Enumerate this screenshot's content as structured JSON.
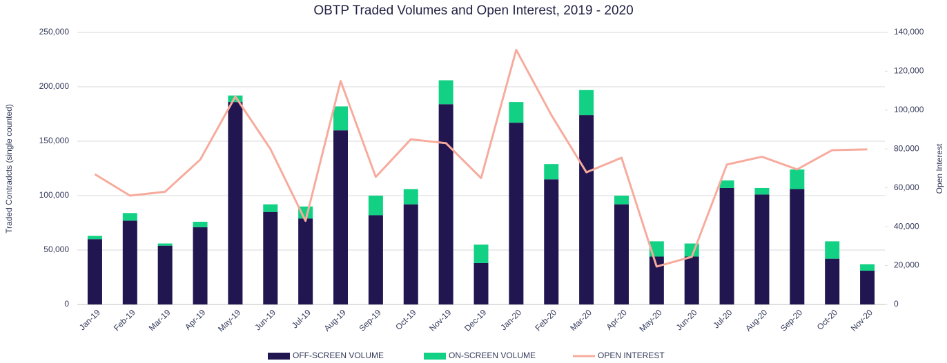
{
  "chart_data": {
    "type": "bar",
    "stacked": true,
    "title": "OBTP Traded Volumes and Open Interest, 2019 - 2020",
    "y_label": "Traded  Contradcts (single counted)",
    "y2_label": "Open Interest",
    "categories": [
      "Jan-19",
      "Feb-19",
      "Mar-19",
      "Apr-19",
      "May-19",
      "Jun-19",
      "Jul-19",
      "Aug-19",
      "Sep-19",
      "Oct-19",
      "Nov-19",
      "Dec-19",
      "Jan-20",
      "Feb-20",
      "Mar-20",
      "Apr-20",
      "May-20",
      "Jun-20",
      "Jul-20",
      "Aug-20",
      "Sep-20",
      "Oct-20",
      "Nov-20"
    ],
    "series": [
      {
        "name": "OFF-SCREEN VOLUME",
        "color": "#211650",
        "type": "bar",
        "values": [
          60000,
          77000,
          54000,
          71000,
          186000,
          85000,
          79000,
          160000,
          82000,
          92000,
          184000,
          38000,
          167000,
          115000,
          174000,
          92000,
          44000,
          44000,
          107000,
          101000,
          106000,
          42000,
          31000
        ]
      },
      {
        "name": "ON-SCREEN VOLUME",
        "color": "#12d184",
        "type": "bar",
        "values": [
          3000,
          7000,
          2000,
          5000,
          6000,
          7000,
          11000,
          22000,
          18000,
          14000,
          22000,
          17000,
          19000,
          14000,
          23000,
          8000,
          14000,
          12000,
          7000,
          6000,
          18000,
          16000,
          6000
        ]
      },
      {
        "name": "OPEN INTEREST",
        "color": "#f7ab9d",
        "type": "line",
        "axis": "y2",
        "values": [
          67000,
          56000,
          58000,
          74500,
          107000,
          80000,
          43000,
          115000,
          65600,
          85000,
          83000,
          65000,
          131000,
          97500,
          68000,
          75500,
          19500,
          24500,
          72000,
          76000,
          69500,
          79400,
          79800
        ]
      }
    ],
    "ylim": [
      0,
      250000
    ],
    "yticks": [
      0,
      {
        "value": 50000,
        "label": "50,000"
      },
      {
        "value": 100000,
        "label": "100,000"
      },
      {
        "value": 150000,
        "label": "150,000"
      },
      {
        "value": 200000,
        "label": "200,000"
      },
      {
        "value": 250000,
        "label": "250,000"
      }
    ],
    "y2lim": [
      0,
      140000
    ],
    "y2ticks": [
      0,
      {
        "value": 20000,
        "label": "20,000"
      },
      {
        "value": 40000,
        "label": "40,000"
      },
      {
        "value": 60000,
        "label": "60,000"
      },
      {
        "value": 80000,
        "label": "80,000"
      },
      {
        "value": 100000,
        "label": "100,000"
      },
      {
        "value": 120000,
        "label": "120,000"
      },
      {
        "value": 140000,
        "label": "140,000"
      }
    ],
    "grid": true,
    "legend": "bottom"
  }
}
